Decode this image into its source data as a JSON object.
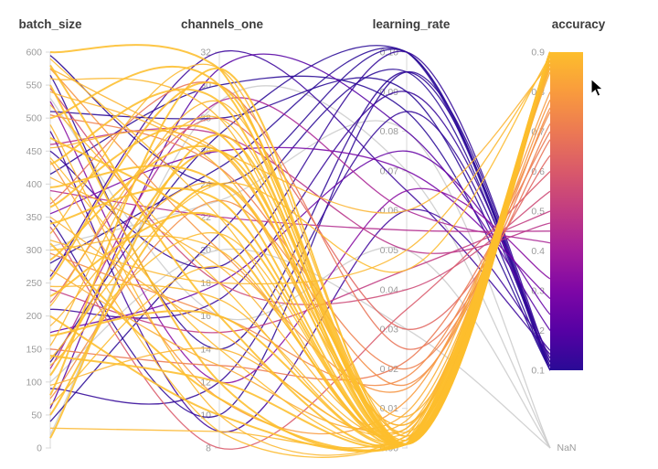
{
  "page": {
    "background": "#ffffff"
  },
  "chart_data": {
    "type": "parallel-coordinates",
    "title": "",
    "axes": [
      {
        "name": "batch_size",
        "min": 0,
        "max": 600,
        "decimals": 0,
        "ticks": [
          0,
          50,
          100,
          150,
          200,
          250,
          300,
          350,
          400,
          450,
          500,
          550,
          600
        ]
      },
      {
        "name": "channels_one",
        "min": 8,
        "max": 32,
        "decimals": 0,
        "ticks": [
          8,
          10,
          12,
          14,
          16,
          18,
          20,
          22,
          24,
          26,
          28,
          30,
          32
        ]
      },
      {
        "name": "learning_rate",
        "min": 0,
        "max": 0.1,
        "decimals": 2,
        "ticks": [
          0,
          0.01,
          0.02,
          0.03,
          0.04,
          0.05,
          0.06,
          0.07,
          0.08,
          0.09,
          0.1
        ]
      },
      {
        "name": "accuracy",
        "min": 0.1,
        "max": 0.9,
        "decimals": 1,
        "ticks": [
          0.1,
          0.2,
          0.3,
          0.4,
          0.5,
          0.6,
          0.7,
          0.8,
          0.9
        ],
        "nan_label": "NaN",
        "colorbar": true
      }
    ],
    "colormap": {
      "name": "plasma",
      "stops": [
        {
          "t": 0.0,
          "color": "#2a0a96"
        },
        {
          "t": 0.125,
          "color": "#5601a4"
        },
        {
          "t": 0.25,
          "color": "#7e07a6"
        },
        {
          "t": 0.375,
          "color": "#a41e9a"
        },
        {
          "t": 0.5,
          "color": "#c13b82"
        },
        {
          "t": 0.625,
          "color": "#d9596a"
        },
        {
          "t": 0.75,
          "color": "#ec7953"
        },
        {
          "t": 0.875,
          "color": "#f99b3d"
        },
        {
          "t": 1.0,
          "color": "#fdbe2c"
        }
      ]
    },
    "colors": {
      "axis_line": "#d8d8d8",
      "tick_label": "#9b9b9b",
      "title": "#3c3c3c",
      "nan_line": "#cccccc",
      "background": "#ffffff"
    },
    "runs_columns": [
      "batch_size",
      "channels_one",
      "learning_rate",
      "accuracy"
    ],
    "runs": [
      [
        600,
        31,
        0.001,
        0.9
      ],
      [
        590,
        22,
        0.002,
        0.89
      ],
      [
        580,
        16,
        0.001,
        0.9
      ],
      [
        560,
        28,
        0.004,
        0.88
      ],
      [
        550,
        12,
        0.001,
        0.9
      ],
      [
        540,
        25,
        0.006,
        0.87
      ],
      [
        520,
        18,
        0.002,
        0.89
      ],
      [
        500,
        30,
        0.001,
        0.9
      ],
      [
        490,
        10,
        0.003,
        0.88
      ],
      [
        470,
        21,
        0.001,
        0.9
      ],
      [
        455,
        26,
        0.008,
        0.86
      ],
      [
        440,
        14,
        0.002,
        0.89
      ],
      [
        430,
        29,
        0.001,
        0.9
      ],
      [
        410,
        19,
        0.005,
        0.87
      ],
      [
        395,
        24,
        0.001,
        0.9
      ],
      [
        380,
        9,
        0.002,
        0.89
      ],
      [
        365,
        27,
        0.001,
        0.9
      ],
      [
        350,
        15,
        0.007,
        0.86
      ],
      [
        340,
        23,
        0.001,
        0.9
      ],
      [
        325,
        31,
        0.003,
        0.88
      ],
      [
        310,
        11,
        0.001,
        0.9
      ],
      [
        300,
        20,
        0.002,
        0.89
      ],
      [
        285,
        26,
        0.001,
        0.9
      ],
      [
        270,
        13,
        0.009,
        0.85
      ],
      [
        255,
        30,
        0.001,
        0.9
      ],
      [
        245,
        17,
        0.004,
        0.88
      ],
      [
        230,
        22,
        0.001,
        0.9
      ],
      [
        215,
        28,
        0.002,
        0.89
      ],
      [
        200,
        10,
        0.001,
        0.9
      ],
      [
        185,
        24,
        0.006,
        0.87
      ],
      [
        170,
        16,
        0.001,
        0.9
      ],
      [
        155,
        29,
        0.003,
        0.88
      ],
      [
        140,
        12,
        0.001,
        0.9
      ],
      [
        125,
        21,
        0.002,
        0.89
      ],
      [
        110,
        26,
        0.001,
        0.9
      ],
      [
        95,
        14,
        0.005,
        0.87
      ],
      [
        80,
        31,
        0.001,
        0.9
      ],
      [
        65,
        19,
        0.002,
        0.89
      ],
      [
        50,
        24,
        0.001,
        0.9
      ],
      [
        30,
        9,
        0.003,
        0.88
      ],
      [
        15,
        27,
        0.001,
        0.9
      ],
      [
        575,
        20,
        0.015,
        0.78
      ],
      [
        505,
        25,
        0.02,
        0.72
      ],
      [
        435,
        11,
        0.012,
        0.8
      ],
      [
        370,
        30,
        0.025,
        0.68
      ],
      [
        295,
        16,
        0.018,
        0.75
      ],
      [
        220,
        28,
        0.03,
        0.64
      ],
      [
        150,
        13,
        0.022,
        0.7
      ],
      [
        75,
        23,
        0.016,
        0.76
      ],
      [
        335,
        8,
        0.035,
        0.6
      ],
      [
        315,
        18,
        0.05,
        0.88
      ],
      [
        575,
        26,
        0.06,
        0.87
      ],
      [
        135,
        24,
        0.045,
        0.89
      ],
      [
        545,
        18,
        0.04,
        0.55
      ],
      [
        460,
        27,
        0.05,
        0.47
      ],
      [
        240,
        15,
        0.045,
        0.5
      ],
      [
        120,
        29,
        0.06,
        0.42
      ],
      [
        390,
        22,
        0.055,
        0.45
      ],
      [
        525,
        12,
        0.065,
        0.33
      ],
      [
        355,
        26,
        0.07,
        0.28
      ],
      [
        175,
        18,
        0.075,
        0.24
      ],
      [
        60,
        31,
        0.08,
        0.2
      ],
      [
        595,
        24,
        0.1,
        0.1
      ],
      [
        565,
        14,
        0.095,
        0.11
      ],
      [
        510,
        28,
        0.09,
        0.1
      ],
      [
        450,
        19,
        0.1,
        0.12
      ],
      [
        415,
        30,
        0.085,
        0.1
      ],
      [
        345,
        10,
        0.095,
        0.11
      ],
      [
        280,
        25,
        0.1,
        0.1
      ],
      [
        210,
        17,
        0.09,
        0.13
      ],
      [
        130,
        27,
        0.1,
        0.1
      ],
      [
        90,
        12,
        0.085,
        0.12
      ],
      [
        40,
        21,
        0.095,
        0.1
      ],
      [
        480,
        9,
        0.06,
        0.15
      ],
      [
        260,
        32,
        0.065,
        0.14
      ],
      [
        530,
        16,
        0.05,
        null
      ],
      [
        305,
        23,
        0.08,
        null
      ],
      [
        100,
        20,
        0.03,
        null
      ],
      [
        20,
        29,
        0.07,
        null
      ]
    ]
  }
}
